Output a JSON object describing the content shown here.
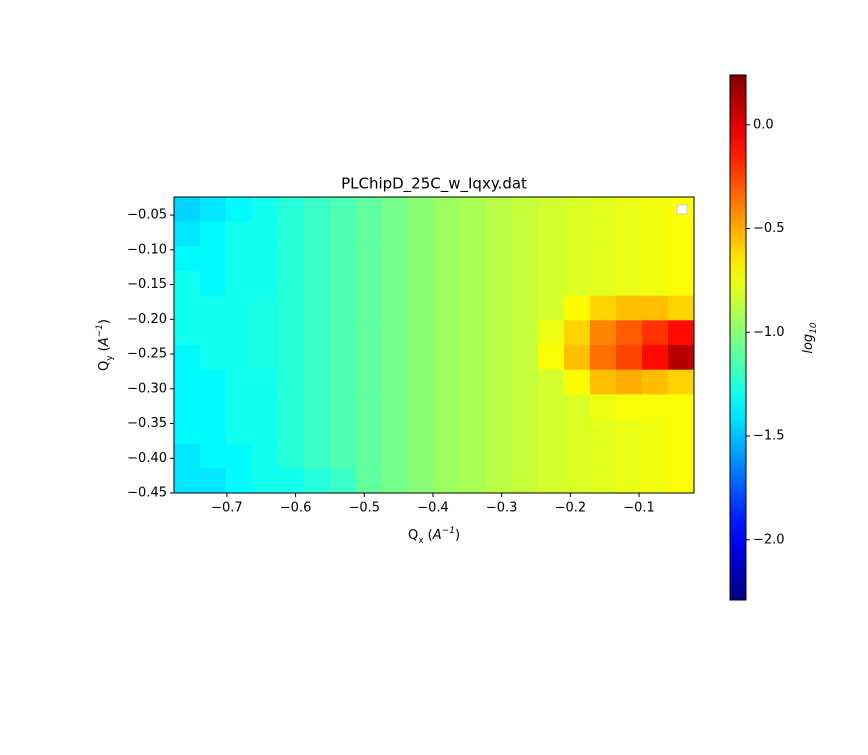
{
  "chart_data": {
    "type": "heatmap",
    "title": "PLChipD_25C_w_Iqxy.dat",
    "xlabel": [
      "Q",
      "x",
      " (",
      "A",
      "−1",
      ")"
    ],
    "ylabel": [
      "Q",
      "y",
      " (",
      "A",
      "−1",
      ")"
    ],
    "colorbar_label": [
      "log",
      "10"
    ],
    "colormap": "jet",
    "xlim": [
      -0.777,
      -0.02
    ],
    "ylim": [
      -0.45,
      -0.024
    ],
    "clim": [
      -2.29,
      0.24
    ],
    "xticks": [
      {
        "value": -0.7,
        "label": "−0.7"
      },
      {
        "value": -0.6,
        "label": "−0.6"
      },
      {
        "value": -0.5,
        "label": "−0.5"
      },
      {
        "value": -0.4,
        "label": "−0.4"
      },
      {
        "value": -0.3,
        "label": "−0.3"
      },
      {
        "value": -0.2,
        "label": "−0.2"
      },
      {
        "value": -0.1,
        "label": "−0.1"
      }
    ],
    "yticks": [
      {
        "value": -0.05,
        "label": "−0.05"
      },
      {
        "value": -0.1,
        "label": "−0.10"
      },
      {
        "value": -0.15,
        "label": "−0.15"
      },
      {
        "value": -0.2,
        "label": "−0.20"
      },
      {
        "value": -0.25,
        "label": "−0.25"
      },
      {
        "value": -0.3,
        "label": "−0.30"
      },
      {
        "value": -0.35,
        "label": "−0.35"
      },
      {
        "value": -0.4,
        "label": "−0.40"
      },
      {
        "value": -0.45,
        "label": "−0.45"
      }
    ],
    "cticks": [
      {
        "value": 0,
        "label": "0.0"
      },
      {
        "value": -0.5,
        "label": "−0.5"
      },
      {
        "value": -1.0,
        "label": "−1.0"
      },
      {
        "value": -1.5,
        "label": "−1.5"
      },
      {
        "value": -2.0,
        "label": "−2.0"
      }
    ],
    "z": [
      [
        -1.45,
        -1.4,
        -1.35,
        -1.3,
        -1.25,
        -1.2,
        -1.15,
        -1.1,
        -1.05,
        -1.0,
        -0.95,
        -0.92,
        -0.88,
        -0.85,
        -0.82,
        -0.8,
        -0.78,
        -0.76,
        -0.74,
        -0.72
      ],
      [
        -1.4,
        -1.35,
        -1.3,
        -1.3,
        -1.25,
        -1.2,
        -1.15,
        -1.1,
        -1.05,
        -1.0,
        -0.95,
        -0.92,
        -0.88,
        -0.85,
        -0.82,
        -0.8,
        -0.78,
        -0.76,
        -0.74,
        -0.72
      ],
      [
        -1.35,
        -1.35,
        -1.3,
        -1.3,
        -1.25,
        -1.2,
        -1.15,
        -1.1,
        -1.05,
        -1.0,
        -0.95,
        -0.92,
        -0.88,
        -0.85,
        -0.82,
        -0.8,
        -0.78,
        -0.76,
        -0.74,
        -0.72
      ],
      [
        -1.3,
        -1.35,
        -1.3,
        -1.3,
        -1.25,
        -1.2,
        -1.15,
        -1.1,
        -1.05,
        -1.0,
        -0.95,
        -0.92,
        -0.88,
        -0.85,
        -0.82,
        -0.8,
        -0.78,
        -0.76,
        -0.74,
        -0.72
      ],
      [
        -1.3,
        -1.3,
        -1.3,
        -1.28,
        -1.25,
        -1.2,
        -1.15,
        -1.1,
        -1.05,
        -1.0,
        -0.95,
        -0.92,
        -0.88,
        -0.85,
        -0.82,
        -0.7,
        -0.6,
        -0.55,
        -0.55,
        -0.6
      ],
      [
        -1.3,
        -1.3,
        -1.3,
        -1.28,
        -1.25,
        -1.2,
        -1.15,
        -1.1,
        -1.05,
        -1.0,
        -0.95,
        -0.92,
        -0.88,
        -0.85,
        -0.75,
        -0.6,
        -0.4,
        -0.3,
        -0.2,
        -0.1
      ],
      [
        -1.35,
        -1.3,
        -1.3,
        -1.28,
        -1.25,
        -1.2,
        -1.15,
        -1.1,
        -1.05,
        -1.0,
        -0.95,
        -0.92,
        -0.88,
        -0.85,
        -0.72,
        -0.55,
        -0.35,
        -0.25,
        -0.1,
        0.1
      ],
      [
        -1.35,
        -1.35,
        -1.3,
        -1.3,
        -1.25,
        -1.2,
        -1.15,
        -1.1,
        -1.05,
        -1.0,
        -0.95,
        -0.92,
        -0.88,
        -0.85,
        -0.82,
        -0.7,
        -0.55,
        -0.5,
        -0.55,
        -0.6
      ],
      [
        -1.35,
        -1.35,
        -1.3,
        -1.3,
        -1.25,
        -1.2,
        -1.15,
        -1.1,
        -1.05,
        -1.0,
        -0.95,
        -0.92,
        -0.88,
        -0.85,
        -0.82,
        -0.8,
        -0.75,
        -0.72,
        -0.72,
        -0.72
      ],
      [
        -1.35,
        -1.35,
        -1.3,
        -1.3,
        -1.25,
        -1.2,
        -1.15,
        -1.1,
        -1.05,
        -1.0,
        -0.95,
        -0.92,
        -0.88,
        -0.85,
        -0.82,
        -0.8,
        -0.78,
        -0.76,
        -0.74,
        -0.72
      ],
      [
        -1.4,
        -1.35,
        -1.35,
        -1.3,
        -1.25,
        -1.2,
        -1.15,
        -1.1,
        -1.05,
        -1.0,
        -0.95,
        -0.92,
        -0.88,
        -0.85,
        -0.82,
        -0.8,
        -0.78,
        -0.76,
        -0.74,
        -0.72
      ],
      [
        -1.4,
        -1.4,
        -1.35,
        -1.3,
        -1.3,
        -1.25,
        -1.2,
        -1.1,
        -1.05,
        -1.0,
        -0.95,
        -0.92,
        -0.88,
        -0.85,
        -0.82,
        -0.8,
        -0.78,
        -0.76,
        -0.74,
        -0.72
      ]
    ]
  }
}
